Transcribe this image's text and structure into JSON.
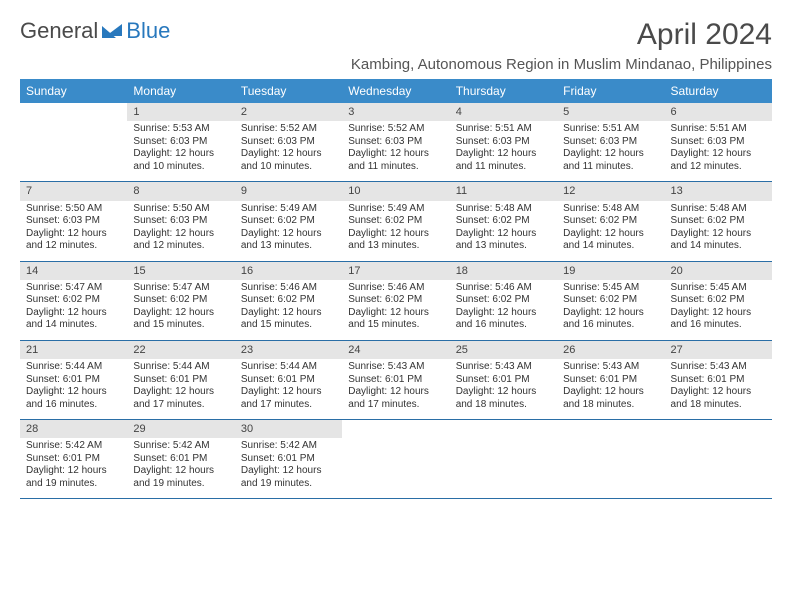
{
  "logo": {
    "text1": "General",
    "text2": "Blue"
  },
  "title": "April 2024",
  "subtitle": "Kambing, Autonomous Region in Muslim Mindanao, Philippines",
  "colors": {
    "header_bg": "#3a8bc9",
    "header_text": "#ffffff",
    "daynum_bg": "#e5e5e5",
    "row_border": "#2a6ea6",
    "text": "#333333",
    "logo_blue": "#2878bd"
  },
  "day_headers": [
    "Sunday",
    "Monday",
    "Tuesday",
    "Wednesday",
    "Thursday",
    "Friday",
    "Saturday"
  ],
  "weeks": [
    [
      {
        "n": "",
        "lines": []
      },
      {
        "n": "1",
        "lines": [
          "Sunrise: 5:53 AM",
          "Sunset: 6:03 PM",
          "Daylight: 12 hours",
          "and 10 minutes."
        ]
      },
      {
        "n": "2",
        "lines": [
          "Sunrise: 5:52 AM",
          "Sunset: 6:03 PM",
          "Daylight: 12 hours",
          "and 10 minutes."
        ]
      },
      {
        "n": "3",
        "lines": [
          "Sunrise: 5:52 AM",
          "Sunset: 6:03 PM",
          "Daylight: 12 hours",
          "and 11 minutes."
        ]
      },
      {
        "n": "4",
        "lines": [
          "Sunrise: 5:51 AM",
          "Sunset: 6:03 PM",
          "Daylight: 12 hours",
          "and 11 minutes."
        ]
      },
      {
        "n": "5",
        "lines": [
          "Sunrise: 5:51 AM",
          "Sunset: 6:03 PM",
          "Daylight: 12 hours",
          "and 11 minutes."
        ]
      },
      {
        "n": "6",
        "lines": [
          "Sunrise: 5:51 AM",
          "Sunset: 6:03 PM",
          "Daylight: 12 hours",
          "and 12 minutes."
        ]
      }
    ],
    [
      {
        "n": "7",
        "lines": [
          "Sunrise: 5:50 AM",
          "Sunset: 6:03 PM",
          "Daylight: 12 hours",
          "and 12 minutes."
        ]
      },
      {
        "n": "8",
        "lines": [
          "Sunrise: 5:50 AM",
          "Sunset: 6:03 PM",
          "Daylight: 12 hours",
          "and 12 minutes."
        ]
      },
      {
        "n": "9",
        "lines": [
          "Sunrise: 5:49 AM",
          "Sunset: 6:02 PM",
          "Daylight: 12 hours",
          "and 13 minutes."
        ]
      },
      {
        "n": "10",
        "lines": [
          "Sunrise: 5:49 AM",
          "Sunset: 6:02 PM",
          "Daylight: 12 hours",
          "and 13 minutes."
        ]
      },
      {
        "n": "11",
        "lines": [
          "Sunrise: 5:48 AM",
          "Sunset: 6:02 PM",
          "Daylight: 12 hours",
          "and 13 minutes."
        ]
      },
      {
        "n": "12",
        "lines": [
          "Sunrise: 5:48 AM",
          "Sunset: 6:02 PM",
          "Daylight: 12 hours",
          "and 14 minutes."
        ]
      },
      {
        "n": "13",
        "lines": [
          "Sunrise: 5:48 AM",
          "Sunset: 6:02 PM",
          "Daylight: 12 hours",
          "and 14 minutes."
        ]
      }
    ],
    [
      {
        "n": "14",
        "lines": [
          "Sunrise: 5:47 AM",
          "Sunset: 6:02 PM",
          "Daylight: 12 hours",
          "and 14 minutes."
        ]
      },
      {
        "n": "15",
        "lines": [
          "Sunrise: 5:47 AM",
          "Sunset: 6:02 PM",
          "Daylight: 12 hours",
          "and 15 minutes."
        ]
      },
      {
        "n": "16",
        "lines": [
          "Sunrise: 5:46 AM",
          "Sunset: 6:02 PM",
          "Daylight: 12 hours",
          "and 15 minutes."
        ]
      },
      {
        "n": "17",
        "lines": [
          "Sunrise: 5:46 AM",
          "Sunset: 6:02 PM",
          "Daylight: 12 hours",
          "and 15 minutes."
        ]
      },
      {
        "n": "18",
        "lines": [
          "Sunrise: 5:46 AM",
          "Sunset: 6:02 PM",
          "Daylight: 12 hours",
          "and 16 minutes."
        ]
      },
      {
        "n": "19",
        "lines": [
          "Sunrise: 5:45 AM",
          "Sunset: 6:02 PM",
          "Daylight: 12 hours",
          "and 16 minutes."
        ]
      },
      {
        "n": "20",
        "lines": [
          "Sunrise: 5:45 AM",
          "Sunset: 6:02 PM",
          "Daylight: 12 hours",
          "and 16 minutes."
        ]
      }
    ],
    [
      {
        "n": "21",
        "lines": [
          "Sunrise: 5:44 AM",
          "Sunset: 6:01 PM",
          "Daylight: 12 hours",
          "and 16 minutes."
        ]
      },
      {
        "n": "22",
        "lines": [
          "Sunrise: 5:44 AM",
          "Sunset: 6:01 PM",
          "Daylight: 12 hours",
          "and 17 minutes."
        ]
      },
      {
        "n": "23",
        "lines": [
          "Sunrise: 5:44 AM",
          "Sunset: 6:01 PM",
          "Daylight: 12 hours",
          "and 17 minutes."
        ]
      },
      {
        "n": "24",
        "lines": [
          "Sunrise: 5:43 AM",
          "Sunset: 6:01 PM",
          "Daylight: 12 hours",
          "and 17 minutes."
        ]
      },
      {
        "n": "25",
        "lines": [
          "Sunrise: 5:43 AM",
          "Sunset: 6:01 PM",
          "Daylight: 12 hours",
          "and 18 minutes."
        ]
      },
      {
        "n": "26",
        "lines": [
          "Sunrise: 5:43 AM",
          "Sunset: 6:01 PM",
          "Daylight: 12 hours",
          "and 18 minutes."
        ]
      },
      {
        "n": "27",
        "lines": [
          "Sunrise: 5:43 AM",
          "Sunset: 6:01 PM",
          "Daylight: 12 hours",
          "and 18 minutes."
        ]
      }
    ],
    [
      {
        "n": "28",
        "lines": [
          "Sunrise: 5:42 AM",
          "Sunset: 6:01 PM",
          "Daylight: 12 hours",
          "and 19 minutes."
        ]
      },
      {
        "n": "29",
        "lines": [
          "Sunrise: 5:42 AM",
          "Sunset: 6:01 PM",
          "Daylight: 12 hours",
          "and 19 minutes."
        ]
      },
      {
        "n": "30",
        "lines": [
          "Sunrise: 5:42 AM",
          "Sunset: 6:01 PM",
          "Daylight: 12 hours",
          "and 19 minutes."
        ]
      },
      {
        "n": "",
        "lines": []
      },
      {
        "n": "",
        "lines": []
      },
      {
        "n": "",
        "lines": []
      },
      {
        "n": "",
        "lines": []
      }
    ]
  ]
}
